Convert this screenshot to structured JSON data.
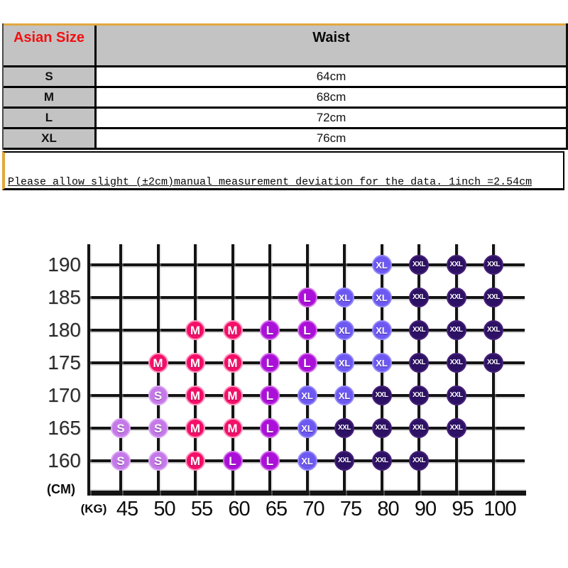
{
  "table": {
    "header": {
      "size_col": "Asian Size",
      "waist_col": "Waist"
    },
    "rows": [
      {
        "size": "S",
        "waist": "64cm"
      },
      {
        "size": "M",
        "waist": "68cm"
      },
      {
        "size": "L",
        "waist": "72cm"
      },
      {
        "size": "XL",
        "waist": "76cm"
      }
    ]
  },
  "note": "Please allow slight (±2cm)manual measurement deviation for the data. 1inch =2.54cm",
  "colors": {
    "accent_gold": "#e2a83d",
    "header_text_red": "#f40f0f",
    "table_gray": "#c3c3c3",
    "grid_line": "#141414"
  },
  "chart_data": {
    "type": "scatter",
    "description": "Height (CM) vs Weight (KG) recommended size grid",
    "y_axis_label": "(CM)",
    "x_axis_label": "(KG)",
    "x_ticks": [
      45,
      50,
      55,
      60,
      65,
      70,
      75,
      80,
      90,
      95,
      100
    ],
    "y_ticks": [
      190,
      185,
      180,
      175,
      170,
      165,
      160
    ],
    "size_colors": {
      "S": {
        "fill": "#c579e8",
        "ring": "#dcaaf4"
      },
      "M": {
        "fill": "#f40f68",
        "ring": "#ff96bf"
      },
      "L": {
        "fill": "#ab10d8",
        "ring": "#d36ee9"
      },
      "XL": {
        "fill": "#6d59f2",
        "ring": "#9488f8"
      },
      "XXL": {
        "fill": "#2c1164",
        "ring": "#472179"
      }
    },
    "rows": [
      {
        "height": 190,
        "cells": [
          null,
          null,
          null,
          null,
          null,
          null,
          null,
          "XL",
          "XXL",
          "XXL",
          "XXL"
        ]
      },
      {
        "height": 185,
        "cells": [
          null,
          null,
          null,
          null,
          null,
          "L",
          "XL",
          "XL",
          "XXL",
          "XXL",
          "XXL"
        ]
      },
      {
        "height": 180,
        "cells": [
          null,
          null,
          "M",
          "M",
          "L",
          "L",
          "XL",
          "XL",
          "XXL",
          "XXL",
          "XXL"
        ]
      },
      {
        "height": 175,
        "cells": [
          null,
          "M",
          "M",
          "M",
          "L",
          "L",
          "XL",
          "XL",
          "XXL",
          "XXL",
          "XXL"
        ]
      },
      {
        "height": 170,
        "cells": [
          null,
          "S",
          "M",
          "M",
          "L",
          "XL",
          "XL",
          "XXL",
          "XXL",
          "XXL",
          null
        ]
      },
      {
        "height": 165,
        "cells": [
          "S",
          "S",
          "M",
          "M",
          "L",
          "XL",
          "XXL",
          "XXL",
          "XXL",
          "XXL",
          null
        ]
      },
      {
        "height": 160,
        "cells": [
          "S",
          "S",
          "M",
          "L",
          "L",
          "XL",
          "XXL",
          "XXL",
          "XXL",
          null,
          null
        ]
      }
    ]
  }
}
